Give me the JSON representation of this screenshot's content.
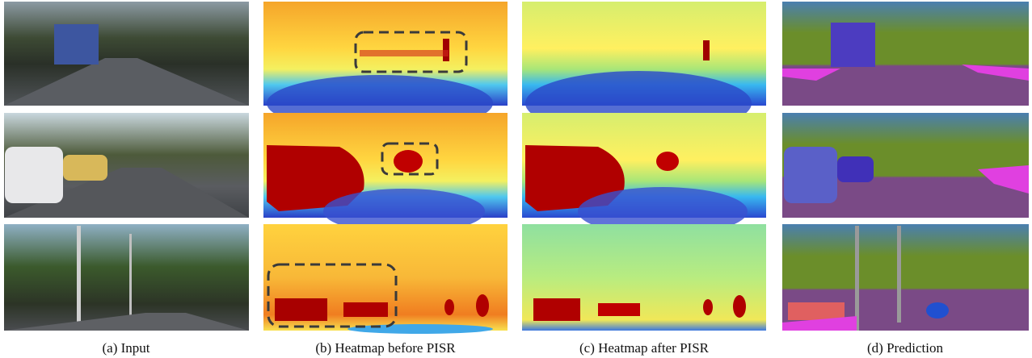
{
  "figure": {
    "captions": [
      "(a) Input",
      "(b) Heatmap before PISR",
      "(c) Heatmap after PISR",
      "(d) Prediction"
    ]
  }
}
